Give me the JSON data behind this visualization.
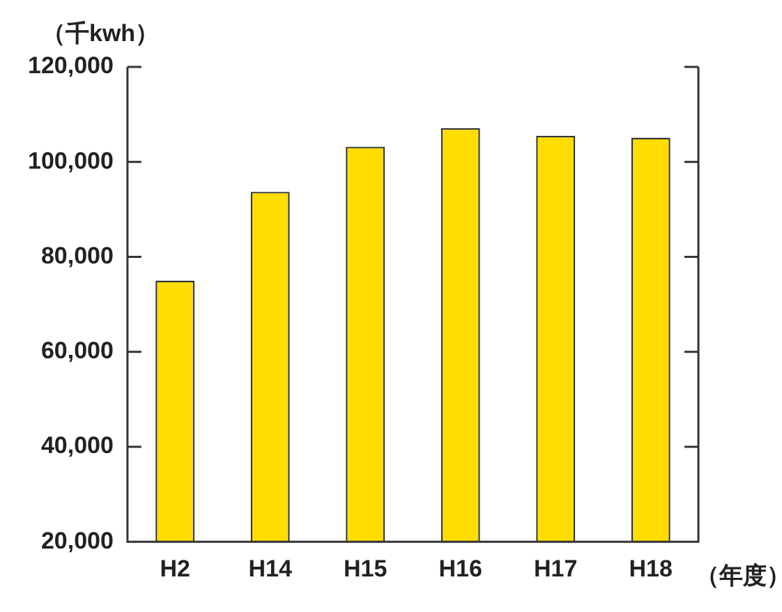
{
  "chart_data": {
    "type": "bar",
    "ylabel": "（千kwh）",
    "xlabel": "（年度）",
    "categories": [
      "H2",
      "H14",
      "H15",
      "H16",
      "H17",
      "H18"
    ],
    "values": [
      75000,
      93700,
      103200,
      107100,
      105500,
      105100
    ],
    "color": "#ffdd00",
    "ylim": [
      20000,
      120000
    ],
    "yticks": [
      {
        "value": 20000,
        "label": "20,000"
      },
      {
        "value": 40000,
        "label": "40,000"
      },
      {
        "value": 60000,
        "label": "60,000"
      },
      {
        "value": 80000,
        "label": "80,000"
      },
      {
        "value": 100000,
        "label": "100,000"
      },
      {
        "value": 120000,
        "label": "120,000"
      }
    ],
    "grid": false,
    "legend": false
  }
}
